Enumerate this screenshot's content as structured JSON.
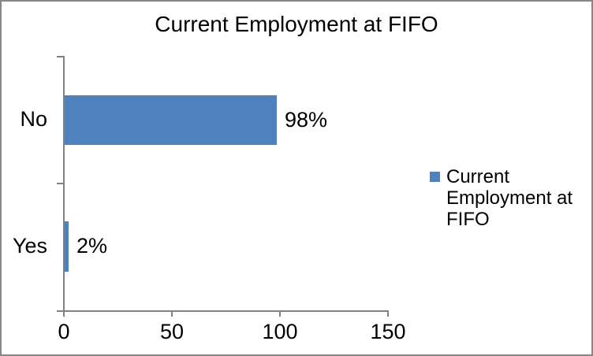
{
  "frame": {
    "background": "#FFFFFF",
    "border_color": "#868686"
  },
  "chart_data": {
    "type": "bar",
    "orientation": "horizontal",
    "title": "Current Employment at FIFO",
    "categories": [
      "No",
      "Yes"
    ],
    "values": [
      98,
      2
    ],
    "data_labels": [
      "98%",
      "2%"
    ],
    "xlim": [
      0,
      150
    ],
    "x_ticks": [
      0,
      50,
      100,
      150
    ],
    "x_tick_labels": [
      "0",
      "50",
      "100",
      "150"
    ],
    "grid": false,
    "legend": {
      "position": "right",
      "marker": "square",
      "label": "Current Employment at FIFO",
      "lines": [
        "Current",
        "Employment at",
        "FIFO"
      ]
    },
    "colors": {
      "bar": "#4F81BD",
      "axis": "#808080",
      "text": "#000000"
    }
  }
}
